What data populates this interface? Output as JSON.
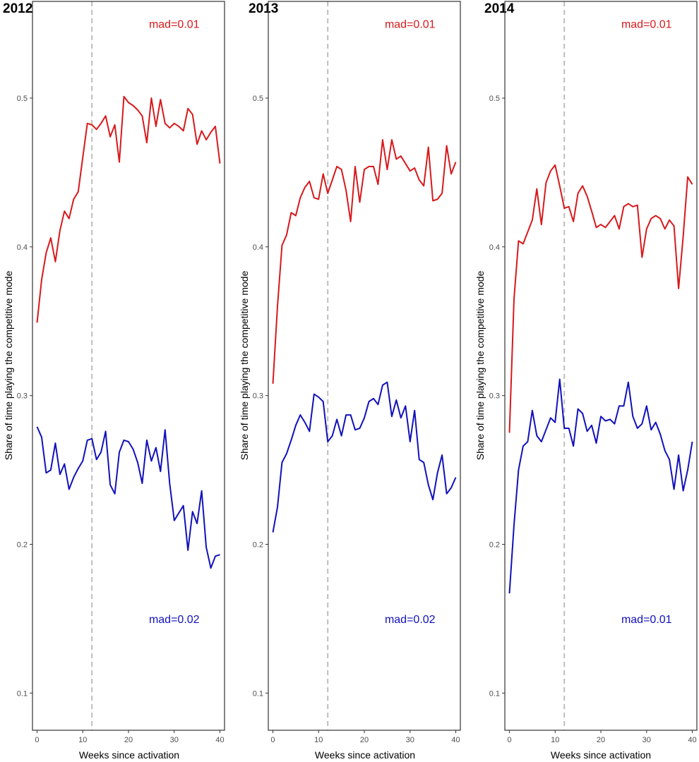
{
  "chart_data": [
    {
      "type": "line",
      "title": "2012",
      "xlabel": "Weeks since activation",
      "ylabel": "Share of time playing the competitive mode",
      "xlim": [
        -1,
        41
      ],
      "ylim": [
        0.075,
        0.565
      ],
      "xticks": [
        0,
        10,
        20,
        30,
        40
      ],
      "yticks": [
        0.1,
        0.2,
        0.3,
        0.4,
        0.5
      ],
      "grid": false,
      "vline_x": 12,
      "x": [
        0,
        1,
        2,
        3,
        4,
        5,
        6,
        7,
        8,
        9,
        10,
        11,
        12,
        13,
        14,
        15,
        16,
        17,
        18,
        19,
        20,
        21,
        22,
        23,
        24,
        25,
        26,
        27,
        28,
        29,
        30,
        31,
        32,
        33,
        34,
        35,
        36,
        37,
        38,
        39,
        40
      ],
      "series": [
        {
          "color": "#d7191c",
          "values": [
            0.349,
            0.378,
            0.396,
            0.406,
            0.39,
            0.411,
            0.424,
            0.419,
            0.432,
            0.437,
            0.46,
            0.483,
            0.482,
            0.479,
            0.483,
            0.488,
            0.474,
            0.482,
            0.457,
            0.501,
            0.497,
            0.495,
            0.492,
            0.488,
            0.47,
            0.5,
            0.481,
            0.499,
            0.483,
            0.48,
            0.483,
            0.481,
            0.478,
            0.493,
            0.489,
            0.469,
            0.478,
            0.472,
            0.477,
            0.481,
            0.456
          ]
        },
        {
          "color": "#1111bb",
          "values": [
            0.279,
            0.272,
            0.248,
            0.25,
            0.268,
            0.247,
            0.254,
            0.237,
            0.245,
            0.251,
            0.256,
            0.27,
            0.271,
            0.257,
            0.262,
            0.276,
            0.24,
            0.234,
            0.262,
            0.27,
            0.269,
            0.264,
            0.255,
            0.241,
            0.27,
            0.256,
            0.265,
            0.249,
            0.277,
            0.241,
            0.216,
            0.221,
            0.226,
            0.196,
            0.222,
            0.214,
            0.236,
            0.198,
            0.184,
            0.192,
            0.193
          ]
        }
      ],
      "annotations": [
        {
          "text": "mad=0.01",
          "color": "#d7191c",
          "x": 30,
          "y": 0.55
        },
        {
          "text": "mad=0.02",
          "color": "#1111bb",
          "x": 30,
          "y": 0.15
        }
      ]
    },
    {
      "type": "line",
      "title": "2013",
      "xlabel": "Weeks since activation",
      "ylabel": "Share of time playing the competitive mode",
      "xlim": [
        -1,
        41
      ],
      "ylim": [
        0.075,
        0.565
      ],
      "xticks": [
        0,
        10,
        20,
        30,
        40
      ],
      "yticks": [
        0.1,
        0.2,
        0.3,
        0.4,
        0.5
      ],
      "grid": false,
      "vline_x": 12,
      "x": [
        0,
        1,
        2,
        3,
        4,
        5,
        6,
        7,
        8,
        9,
        10,
        11,
        12,
        13,
        14,
        15,
        16,
        17,
        18,
        19,
        20,
        21,
        22,
        23,
        24,
        25,
        26,
        27,
        28,
        29,
        30,
        31,
        32,
        33,
        34,
        35,
        36,
        37,
        38,
        39,
        40
      ],
      "series": [
        {
          "color": "#d7191c",
          "values": [
            0.308,
            0.36,
            0.401,
            0.408,
            0.423,
            0.421,
            0.433,
            0.44,
            0.444,
            0.433,
            0.432,
            0.449,
            0.436,
            0.445,
            0.454,
            0.452,
            0.438,
            0.417,
            0.454,
            0.43,
            0.452,
            0.454,
            0.454,
            0.442,
            0.472,
            0.452,
            0.472,
            0.459,
            0.461,
            0.456,
            0.451,
            0.453,
            0.445,
            0.441,
            0.467,
            0.431,
            0.432,
            0.436,
            0.468,
            0.449,
            0.457
          ]
        },
        {
          "color": "#1111bb",
          "values": [
            0.208,
            0.225,
            0.255,
            0.261,
            0.27,
            0.28,
            0.287,
            0.282,
            0.276,
            0.301,
            0.299,
            0.296,
            0.269,
            0.273,
            0.284,
            0.273,
            0.287,
            0.287,
            0.277,
            0.278,
            0.285,
            0.296,
            0.298,
            0.294,
            0.307,
            0.309,
            0.286,
            0.297,
            0.285,
            0.293,
            0.269,
            0.29,
            0.257,
            0.255,
            0.24,
            0.23,
            0.248,
            0.26,
            0.234,
            0.238,
            0.245
          ]
        }
      ],
      "annotations": [
        {
          "text": "mad=0.01",
          "color": "#d7191c",
          "x": 30,
          "y": 0.55
        },
        {
          "text": "mad=0.02",
          "color": "#1111bb",
          "x": 30,
          "y": 0.15
        }
      ]
    },
    {
      "type": "line",
      "title": "2014",
      "xlabel": "Weeks since activation",
      "ylabel": "Share of time playing the competitive mode",
      "xlim": [
        -1,
        41
      ],
      "ylim": [
        0.075,
        0.565
      ],
      "xticks": [
        0,
        10,
        20,
        30,
        40
      ],
      "yticks": [
        0.1,
        0.2,
        0.3,
        0.4,
        0.5
      ],
      "grid": false,
      "vline_x": 12,
      "x": [
        0,
        1,
        2,
        3,
        4,
        5,
        6,
        7,
        8,
        9,
        10,
        11,
        12,
        13,
        14,
        15,
        16,
        17,
        18,
        19,
        20,
        21,
        22,
        23,
        24,
        25,
        26,
        27,
        28,
        29,
        30,
        31,
        32,
        33,
        34,
        35,
        36,
        37,
        38,
        39,
        40
      ],
      "series": [
        {
          "color": "#d7191c",
          "values": [
            0.275,
            0.365,
            0.404,
            0.402,
            0.41,
            0.418,
            0.439,
            0.415,
            0.443,
            0.451,
            0.455,
            0.441,
            0.426,
            0.427,
            0.417,
            0.436,
            0.441,
            0.434,
            0.424,
            0.413,
            0.415,
            0.413,
            0.417,
            0.421,
            0.412,
            0.427,
            0.429,
            0.427,
            0.428,
            0.393,
            0.412,
            0.419,
            0.421,
            0.419,
            0.412,
            0.418,
            0.414,
            0.372,
            0.407,
            0.447,
            0.442
          ]
        },
        {
          "color": "#1111bb",
          "values": [
            0.167,
            0.213,
            0.25,
            0.266,
            0.269,
            0.29,
            0.273,
            0.269,
            0.277,
            0.285,
            0.282,
            0.311,
            0.278,
            0.278,
            0.266,
            0.291,
            0.288,
            0.276,
            0.28,
            0.268,
            0.286,
            0.283,
            0.284,
            0.281,
            0.293,
            0.293,
            0.309,
            0.286,
            0.278,
            0.281,
            0.293,
            0.277,
            0.282,
            0.274,
            0.263,
            0.257,
            0.237,
            0.26,
            0.236,
            0.25,
            0.269
          ]
        }
      ],
      "annotations": [
        {
          "text": "mad=0.01",
          "color": "#d7191c",
          "x": 30,
          "y": 0.55
        },
        {
          "text": "mad=0.01",
          "color": "#1111bb",
          "x": 30,
          "y": 0.15
        }
      ]
    }
  ]
}
